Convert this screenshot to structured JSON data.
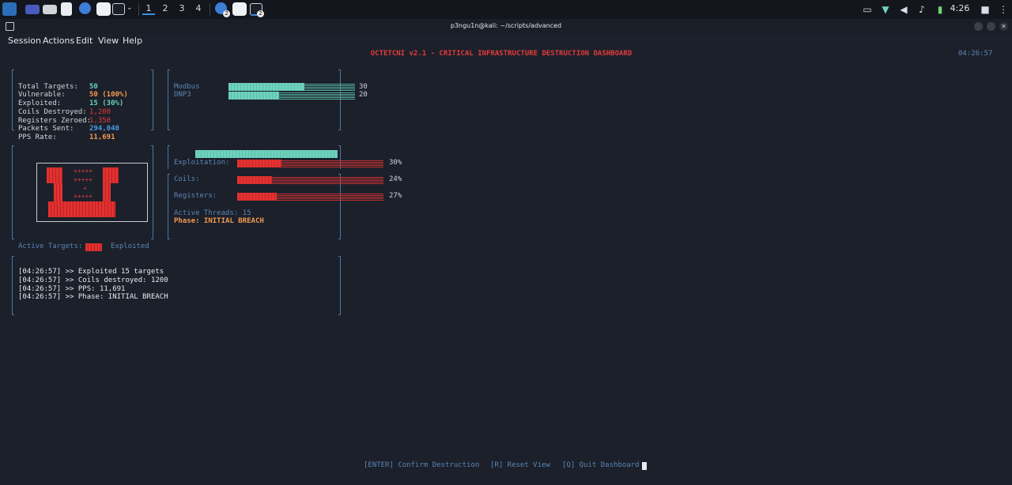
{
  "taskbar": {
    "workspaces": [
      "1",
      "2",
      "3",
      "4"
    ],
    "badges": [
      "2",
      "2"
    ],
    "clock": "4:26"
  },
  "window": {
    "title": "p3ngu1n@kali: ~/scripts/advanced"
  },
  "menu": [
    "Session",
    "Actions",
    "Edit",
    "View",
    "Help"
  ],
  "dashboard": {
    "header": "OCTETCNI v2.1 - CRITICAL INFRASTRUCTURE DESTRUCTION DASHBOARD",
    "time": "04:26:57",
    "stats": [
      {
        "label": "Total Targets:",
        "value": "50",
        "color": "teal"
      },
      {
        "label": "Vulnerable:",
        "value": "50 (100%)",
        "color": "orange"
      },
      {
        "label": "Exploited:",
        "value": "15 (30%)",
        "color": "teal"
      },
      {
        "label": "Coils Destroyed:",
        "value": "1,200",
        "color": "red"
      },
      {
        "label": "Registers Zeroed:",
        "value": "1,350",
        "color": "red"
      },
      {
        "label": "Packets Sent:",
        "value": "294,040",
        "color": "blue"
      },
      {
        "label": "PPS Rate:",
        "value": "11,691",
        "color": "orange"
      }
    ],
    "protocols": [
      {
        "name": "Modbus",
        "count": "30",
        "value": 30
      },
      {
        "name": "DNP3",
        "count": "20",
        "value": 20
      }
    ],
    "protocol_max": 50,
    "progress": [
      {
        "label": "Exploitation:",
        "pct": "30%",
        "value": 0.3
      },
      {
        "label": "Coils:",
        "pct": "24%",
        "value": 0.24
      },
      {
        "label": "Registers:",
        "pct": "27%",
        "value": 0.27
      }
    ],
    "threads": "Active Threads: 15",
    "phase": "Phase: INITIAL BREACH",
    "map_glyphs": [
      "+++++",
      "+++++",
      "+",
      "+++++"
    ],
    "legend": {
      "active": "Active Targets:",
      "exploited": "Exploited"
    },
    "log": [
      "[04:26:57] >> Exploited 15 targets",
      "[04:26:57] >> Coils destroyed: 1200",
      "[04:26:57] >> PPS: 11,691",
      "[04:26:57] >> Phase: INITIAL BREACH"
    ],
    "footer": {
      "confirm": "[ENTER] Confirm Destruction",
      "reset": "[R] Reset View",
      "quit": "[Q] Quit Dashboard"
    }
  },
  "colors": {
    "teal": "#62d1bb",
    "orange": "#f39a52",
    "red": "#e23b3b",
    "blue": "#4a9be0",
    "border": "#4778a8"
  }
}
